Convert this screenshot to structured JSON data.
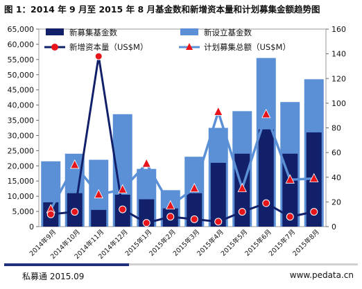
{
  "title": "图 1：2014 年 9 月至 2015 年 8 月基金数和新增资本量和计划募集金额趋势图",
  "footer": {
    "source": "私募通 2015.09",
    "url": "www.pedata.cn"
  },
  "colors": {
    "new_funds": "#12206a",
    "new_set_funds": "#5b90d6",
    "new_capital": "#12206a",
    "plan_raise": "#5b90d6",
    "marker": "#e8141b"
  },
  "chart_data": {
    "type": "bar",
    "categories": [
      "2014年9月",
      "2014年10月",
      "2014年11月",
      "2014年12月",
      "2015年1月",
      "2015年2月",
      "2015年3月",
      "2015年4月",
      "2015年5月",
      "2015年6月",
      "2015年7月",
      "2015年8月"
    ],
    "y_left": {
      "min": 0,
      "max": 65000,
      "step": 5000,
      "tick_labels": [
        "0",
        "5,000",
        "10,000",
        "15,000",
        "20,000",
        "25,000",
        "30,000",
        "35,000",
        "40,000",
        "45,000",
        "50,000",
        "55,000",
        "60,000",
        "65,000"
      ]
    },
    "y_right": {
      "min": 0,
      "max": 160,
      "step": 20,
      "tick_labels": [
        "0",
        "20",
        "40",
        "60",
        "80",
        "100",
        "120",
        "140",
        "160"
      ]
    },
    "series": [
      {
        "name": "新募集基金数",
        "kind": "bar",
        "axis": "left",
        "values": [
          8000,
          11000,
          5500,
          10500,
          9000,
          6000,
          11000,
          21000,
          24000,
          32000,
          24000,
          31000
        ]
      },
      {
        "name": "新设立基金数",
        "kind": "bar",
        "axis": "left",
        "values": [
          21500,
          24000,
          22000,
          37000,
          19000,
          12000,
          23000,
          32500,
          38000,
          55500,
          41000,
          48500
        ]
      },
      {
        "name": "新增资本量（US$M）",
        "kind": "line",
        "axis": "right",
        "values": [
          10,
          12,
          138,
          14,
          3,
          8,
          6,
          4,
          12,
          19,
          8,
          12
        ]
      },
      {
        "name": "计划募集总额（US$M）",
        "kind": "line",
        "axis": "right",
        "values": [
          14,
          50,
          26,
          30,
          51,
          17,
          31,
          93,
          31,
          91,
          38,
          39
        ]
      }
    ],
    "legend_position": "top",
    "grid": false
  }
}
